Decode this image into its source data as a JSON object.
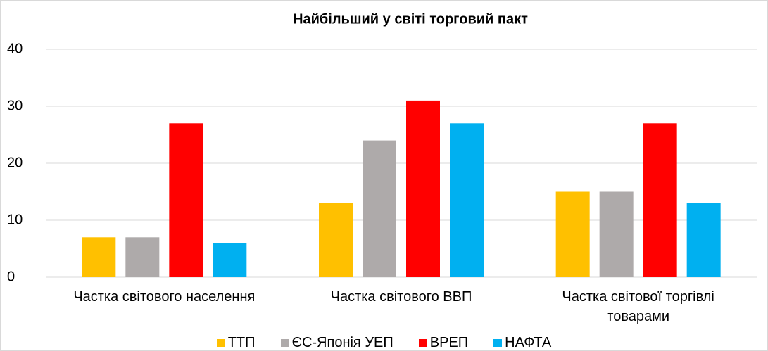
{
  "chart_data": {
    "type": "bar",
    "title": "Найбільший у світі торговий пакт",
    "categories": [
      "Частка світового населення",
      "Частка світового ВВП",
      "Частка світової торгівлі товарами"
    ],
    "series": [
      {
        "name": "ТТП",
        "color": "#ffc000",
        "values": [
          7,
          13,
          15
        ]
      },
      {
        "name": "ЄС-Японія УЕП",
        "color": "#aeaaaa",
        "values": [
          7,
          24,
          15
        ]
      },
      {
        "name": "ВРЕП",
        "color": "#ff0000",
        "values": [
          27,
          31,
          27
        ]
      },
      {
        "name": "НАФТА",
        "color": "#00b0f0",
        "values": [
          6,
          27,
          13
        ]
      }
    ],
    "ylim": [
      0,
      40
    ],
    "yticks": [
      0,
      10,
      20,
      30,
      40
    ],
    "grid": true,
    "legend": "bottom"
  }
}
